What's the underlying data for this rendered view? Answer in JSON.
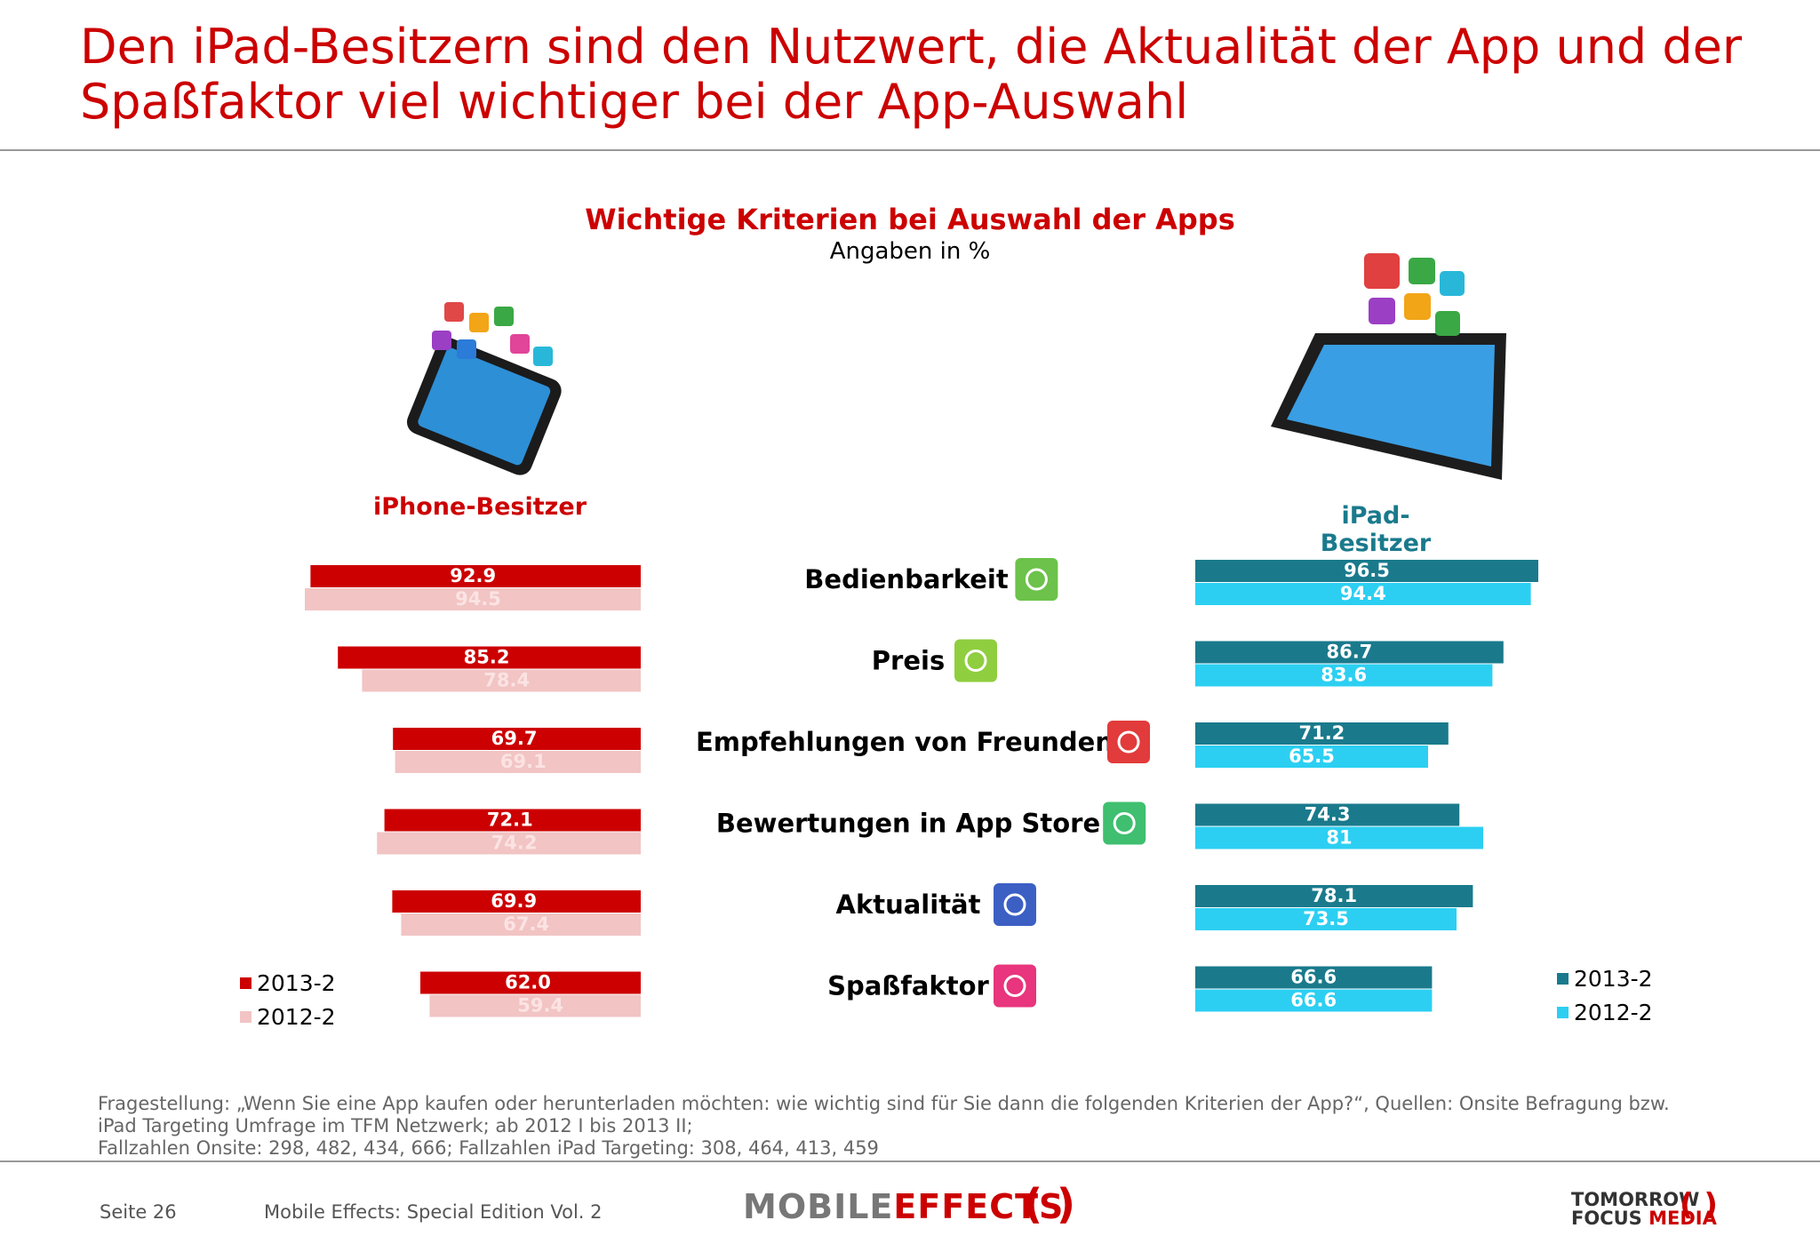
{
  "page": {
    "title": "Den iPad-Besitzern sind den Nutzwert, die Aktualität der App und der Spaßfaktor viel wichtiger bei der App-Auswahl",
    "footnote_lines": [
      "Fragestellung: „Wenn Sie eine App kaufen oder herunterladen möchten: wie wichtig sind für Sie dann die folgenden Kriterien der App?“, Quellen: Onsite Befragung bzw.",
      "iPad Targeting Umfrage im TFM Netzwerk; ab 2012 I bis 2013 II;",
      "Fallzahlen Onsite: 298, 482, 434, 666; Fallzahlen iPad Targeting: 308, 464, 413, 459"
    ],
    "footer": {
      "page": "Seite 26",
      "publication": "Mobile Effects: Special Edition Vol. 2",
      "logo_mobile": "MOBILE",
      "logo_effects": "EFFECTS",
      "logo_tfm_1": "TOMORROW",
      "logo_tfm_2": "FOCUS",
      "logo_tfm_3": "MEDIA"
    }
  },
  "chart_data": {
    "type": "bar",
    "title": "Wichtige Kriterien bei Auswahl der Apps",
    "subtitle": "Angaben in %",
    "categories": [
      "Bedienbarkeit",
      "Preis",
      "Empfehlungen von Freunden",
      "Bewertungen in App Store",
      "Aktualität",
      "Spaßfaktor"
    ],
    "category_icons": [
      "tools-icon",
      "shopping-cart-icon",
      "info-icon",
      "checkmark-icon",
      "globe-icon",
      "music-note-icon"
    ],
    "groups": [
      {
        "name": "iPhone-Besitzer",
        "orientation": "left",
        "series": [
          {
            "name": "2013-2",
            "color": "#cc0000",
            "values": [
              92.9,
              85.2,
              69.7,
              72.1,
              69.9,
              62.0
            ],
            "labels": [
              "92.9",
              "85.2",
              "69.7",
              "72.1",
              "69.9",
              "62.0"
            ]
          },
          {
            "name": "2012-2",
            "color": "#f2c4c4",
            "values": [
              94.5,
              78.4,
              69.1,
              74.2,
              67.4,
              59.4
            ],
            "labels": [
              "94.5",
              "78.4",
              "69.1",
              "74.2",
              "67.4",
              "59.4"
            ]
          }
        ]
      },
      {
        "name": "iPad-Besitzer",
        "orientation": "right",
        "series": [
          {
            "name": "2013-2",
            "color": "#1a7a8c",
            "values": [
              96.5,
              86.7,
              71.2,
              74.3,
              78.1,
              66.6
            ],
            "labels": [
              "96.5",
              "86.7",
              "71.2",
              "74.3",
              "78.1",
              "66.6"
            ]
          },
          {
            "name": "2012-2",
            "color": "#2ccff2",
            "values": [
              94.4,
              83.6,
              65.5,
              81,
              73.5,
              66.6
            ],
            "labels": [
              "94.4",
              "83.6",
              "65.5",
              "81",
              "73.5",
              "66.6"
            ]
          }
        ]
      }
    ],
    "legend_placement": "bottom-left and bottom-right",
    "grid": false
  }
}
